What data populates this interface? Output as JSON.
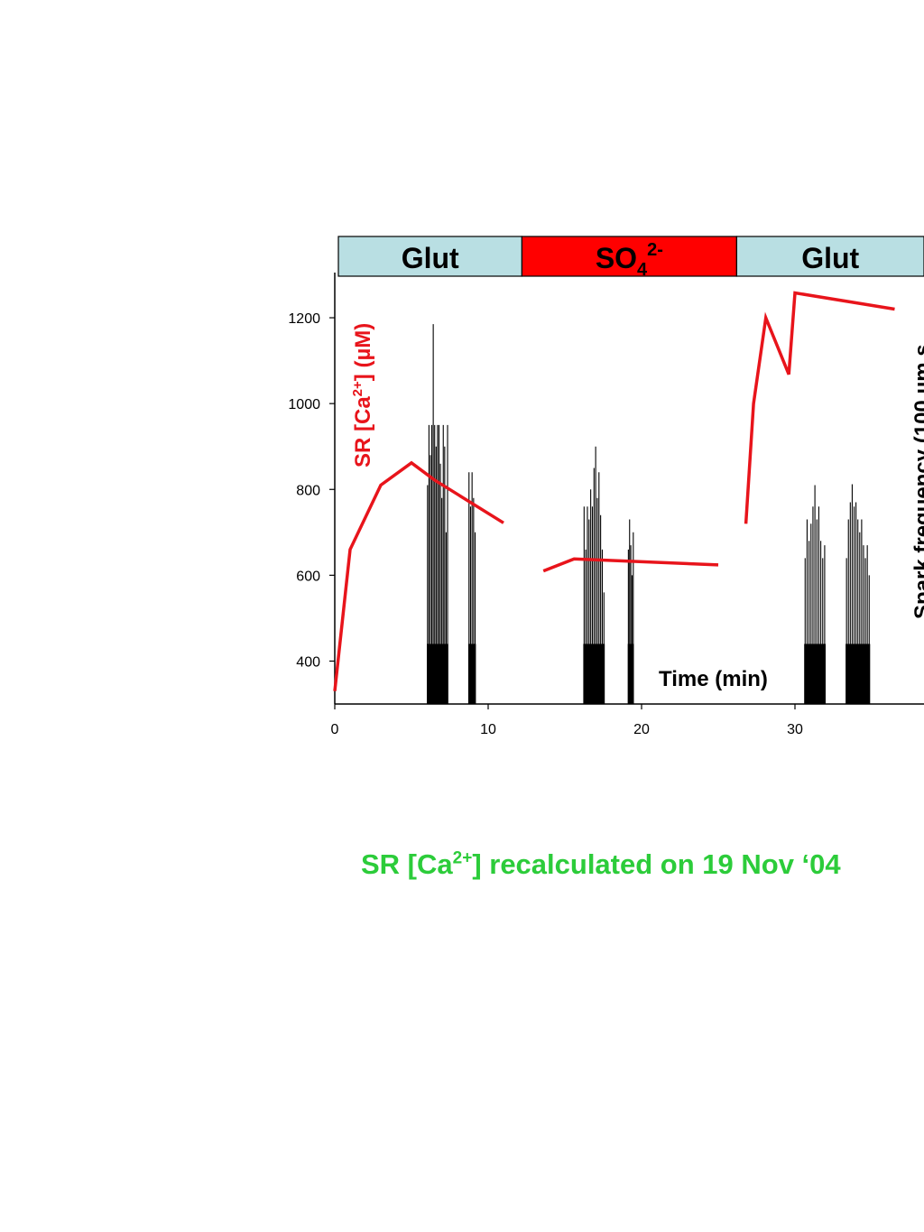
{
  "colors": {
    "glut_box": "#b9dfe3",
    "so4_box": "#ff0000",
    "sr_line": "#e8141b",
    "spark_bars": "#000000",
    "footnote": "#2ccc3a"
  },
  "chart_data": {
    "type": "line",
    "xlabel": "Time (min)",
    "left_ylabel": {
      "prefix": "SR [Ca",
      "sup": "2+",
      "suffix": "] (µM)"
    },
    "right_ylabel": "Spark frequency (100 µm s",
    "xlim": [
      0,
      38.5
    ],
    "ylim": [
      300,
      1300
    ],
    "xticks": [
      "0",
      "10",
      "20",
      "30"
    ],
    "yticks": [
      "400",
      "600",
      "800",
      "1000",
      "1200"
    ],
    "grid": false,
    "condition_bar": [
      {
        "label": "Glut",
        "sup": "",
        "sub": "",
        "start": 0.2,
        "end": 12.2
      },
      {
        "label": "SO",
        "sub": "4",
        "sup": "2-",
        "start": 12.2,
        "end": 26.2
      },
      {
        "label": "Glut",
        "sup": "",
        "sub": "",
        "start": 26.2,
        "end": 38.5
      }
    ],
    "series": [
      {
        "segments": [
          [
            [
              0,
              330
            ],
            [
              1,
              660
            ],
            [
              3,
              810
            ],
            [
              5,
              862
            ],
            [
              6.5,
              822
            ],
            [
              11,
              722
            ]
          ],
          [
            [
              13.6,
              610
            ],
            [
              15.6,
              638
            ],
            [
              25,
              624
            ]
          ],
          [
            [
              26.8,
              720
            ],
            [
              27.3,
              1000
            ],
            [
              28.1,
              1200
            ],
            [
              29.6,
              1068
            ],
            [
              30,
              1258
            ],
            [
              36.5,
              1220
            ]
          ]
        ]
      },
      {
        "type": "bar",
        "groups": [
          {
            "x_start": 6.0,
            "x_end": 7.4,
            "peaks": [
              810,
              950,
              880,
              950,
              1185,
              950,
              900,
              950,
              950,
              860,
              780,
              950,
              900,
              700,
              950
            ]
          },
          {
            "x_start": 8.7,
            "x_end": 9.2,
            "peaks": [
              840,
              760,
              840,
              780,
              700
            ]
          },
          {
            "x_start": 16.2,
            "x_end": 17.6,
            "peaks": [
              760,
              660,
              760,
              730,
              800,
              760,
              850,
              900,
              780,
              840,
              740,
              660,
              560
            ]
          },
          {
            "x_start": 19.1,
            "x_end": 19.5,
            "peaks": [
              660,
              730,
              670,
              600,
              700
            ]
          },
          {
            "x_start": 30.6,
            "x_end": 32.0,
            "peaks": [
              640,
              730,
              680,
              720,
              760,
              810,
              730,
              760,
              680,
              640,
              670
            ]
          },
          {
            "x_start": 33.3,
            "x_end": 34.9,
            "peaks": [
              640,
              730,
              770,
              812,
              760,
              770,
              730,
              700,
              730,
              670,
              640,
              670,
              600
            ]
          }
        ]
      }
    ]
  },
  "footnote": {
    "prefix": "SR [Ca",
    "sup": "2+",
    "suffix": "] recalculated on 19 Nov ‘04"
  }
}
